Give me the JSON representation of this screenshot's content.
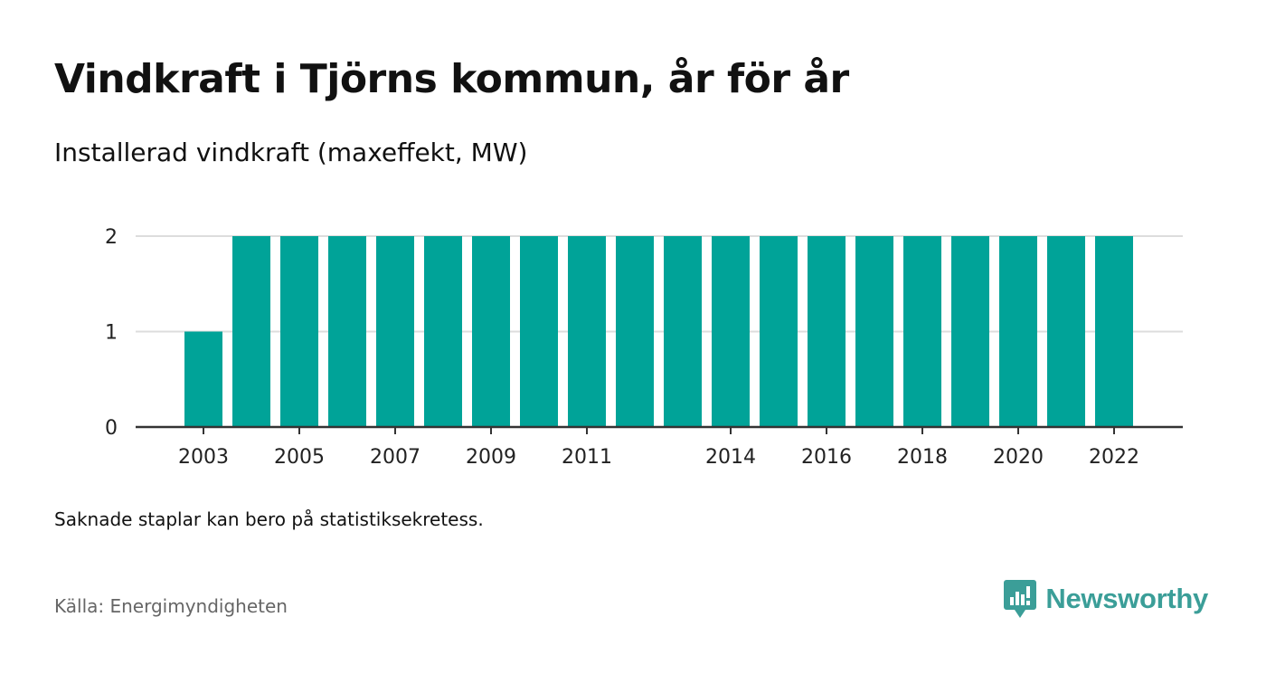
{
  "title": "Vindkraft i Tjörns kommun, år för år",
  "subtitle": "Installerad vindkraft (maxeffekt, MW)",
  "note": "Saknade staplar kan bero på statistiksekretess.",
  "source": "Källa: Energimyndigheten",
  "brand": {
    "name": "Newsworthy",
    "icon": "newsworthy-logo-icon",
    "color": "#3b9e98"
  },
  "chart_data": {
    "type": "bar",
    "title": "Vindkraft i Tjörns kommun, år för år",
    "subtitle": "Installerad vindkraft (maxeffekt, MW)",
    "xlabel": "",
    "ylabel": "",
    "categories": [
      2003,
      2004,
      2005,
      2006,
      2007,
      2008,
      2009,
      2010,
      2011,
      2012,
      2013,
      2014,
      2015,
      2016,
      2017,
      2018,
      2019,
      2020,
      2021,
      2022
    ],
    "values": [
      1,
      2,
      2,
      2,
      2,
      2,
      2,
      2,
      2,
      2,
      2,
      2,
      2,
      2,
      2,
      2,
      2,
      2,
      2,
      2
    ],
    "x_tick_labels": [
      "2003",
      "2005",
      "2007",
      "2009",
      "2011",
      "2014",
      "2016",
      "2018",
      "2020",
      "2022"
    ],
    "y_ticks": [
      0,
      1,
      2
    ],
    "ylim": [
      0,
      2
    ],
    "grid": true,
    "legend": "none",
    "bar_color": "#00a398",
    "grid_color": "#dddddd",
    "axis_color": "#333333"
  }
}
